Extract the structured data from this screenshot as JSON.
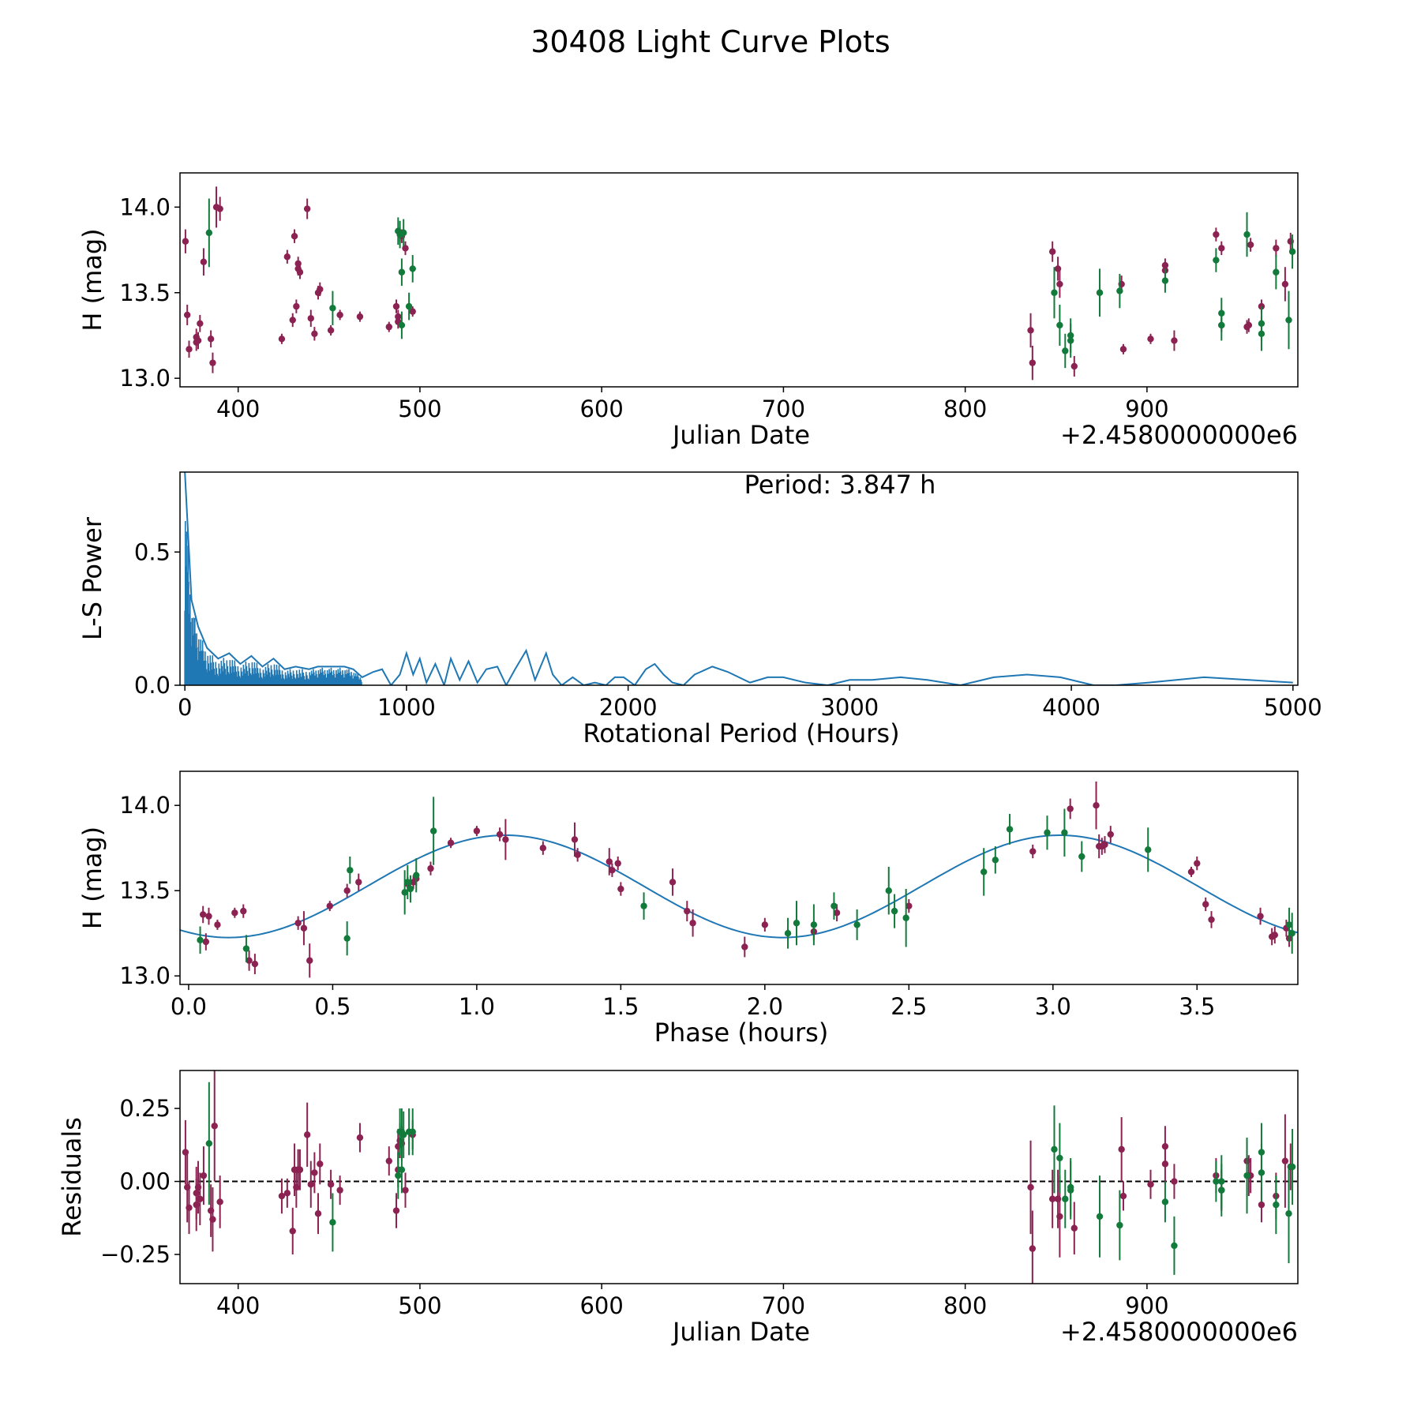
{
  "figure": {
    "title": "30408 Light Curve Plots"
  },
  "colors": {
    "red_band": "#8b2252",
    "green_band": "#127a3a",
    "model": "#1f77b4",
    "axes": "#000000"
  },
  "chart_data": [
    {
      "type": "scatter",
      "name": "light-curve",
      "title": "",
      "xlabel": "Julian Date",
      "ylabel": "H (mag)",
      "offset_text": "+2.4580000000e6",
      "xlim": [
        368,
        983
      ],
      "ylim": [
        12.95,
        14.2
      ],
      "xticks": [
        400,
        500,
        600,
        700,
        800,
        900
      ],
      "yticks": [
        13.0,
        13.5,
        14.0
      ],
      "ytick_labels": [
        "13.0",
        "13.5",
        "14.0"
      ],
      "series": [
        {
          "name": "red band",
          "color": "red_band",
          "x": [
            371,
            372,
            373,
            377,
            377,
            378,
            379,
            381,
            385,
            386,
            388,
            390,
            424,
            427,
            430,
            431,
            432,
            433,
            433,
            434,
            438,
            440,
            442,
            444,
            445,
            451,
            456,
            467,
            483,
            487,
            488,
            488,
            489,
            490,
            492,
            496,
            836,
            837,
            848,
            851,
            852,
            860,
            886,
            887,
            902,
            910,
            910,
            915,
            938,
            941,
            941,
            955,
            956,
            957,
            963,
            971,
            976,
            979
          ],
          "y": [
            13.8,
            13.37,
            13.17,
            13.24,
            13.21,
            13.22,
            13.32,
            13.68,
            13.23,
            13.09,
            14.0,
            13.99,
            13.23,
            13.71,
            13.34,
            13.83,
            13.42,
            13.67,
            13.64,
            13.62,
            13.99,
            13.35,
            13.26,
            13.5,
            13.52,
            13.28,
            13.37,
            13.36,
            13.3,
            13.42,
            13.36,
            13.33,
            13.84,
            13.83,
            13.76,
            13.39,
            13.28,
            13.09,
            13.74,
            13.64,
            13.55,
            13.07,
            13.55,
            13.17,
            13.23,
            13.66,
            13.63,
            13.22,
            13.84,
            13.76,
            13.31,
            13.3,
            13.31,
            13.78,
            13.42,
            13.76,
            13.55,
            13.8
          ],
          "yerr": [
            0.07,
            0.06,
            0.05,
            0.05,
            0.05,
            0.05,
            0.05,
            0.08,
            0.05,
            0.06,
            0.12,
            0.07,
            0.03,
            0.04,
            0.04,
            0.04,
            0.04,
            0.04,
            0.04,
            0.04,
            0.06,
            0.05,
            0.04,
            0.04,
            0.04,
            0.03,
            0.03,
            0.03,
            0.03,
            0.04,
            0.04,
            0.04,
            0.04,
            0.04,
            0.04,
            0.03,
            0.1,
            0.1,
            0.06,
            0.07,
            0.08,
            0.06,
            0.05,
            0.03,
            0.03,
            0.04,
            0.04,
            0.06,
            0.04,
            0.04,
            0.04,
            0.04,
            0.04,
            0.04,
            0.04,
            0.05,
            0.1,
            0.05
          ]
        },
        {
          "name": "green band",
          "color": "green_band",
          "x": [
            384,
            452,
            488,
            489,
            490,
            490,
            491,
            494,
            496,
            849,
            852,
            855,
            858,
            858,
            874,
            885,
            910,
            938,
            941,
            941,
            955,
            963,
            963,
            971,
            978,
            980
          ],
          "y": [
            13.85,
            13.41,
            13.86,
            13.84,
            13.31,
            13.62,
            13.85,
            13.42,
            13.64,
            13.5,
            13.31,
            13.16,
            13.25,
            13.22,
            13.5,
            13.51,
            13.57,
            13.69,
            13.31,
            13.38,
            13.84,
            13.26,
            13.32,
            13.62,
            13.34,
            13.74
          ],
          "yerr": [
            0.2,
            0.1,
            0.08,
            0.08,
            0.08,
            0.08,
            0.08,
            0.08,
            0.08,
            0.15,
            0.12,
            0.1,
            0.1,
            0.1,
            0.14,
            0.1,
            0.07,
            0.07,
            0.09,
            0.09,
            0.13,
            0.1,
            0.1,
            0.1,
            0.17,
            0.1
          ]
        }
      ]
    },
    {
      "type": "line",
      "name": "periodogram",
      "title": "",
      "xlabel": "Rotational Period (Hours)",
      "ylabel": "L-S Power",
      "annotation": "Period: 3.847 h",
      "xlim": [
        -22,
        5022
      ],
      "ylim": [
        0,
        0.8
      ],
      "xticks": [
        0,
        1000,
        2000,
        3000,
        4000,
        5000
      ],
      "yticks": [
        0.0,
        0.5
      ],
      "ytick_labels": [
        "0.0",
        "0.5"
      ],
      "x": [
        0,
        30,
        60,
        100,
        150,
        200,
        250,
        300,
        350,
        400,
        450,
        500,
        560,
        600,
        640,
        680,
        720,
        760,
        800,
        850,
        890,
        930,
        970,
        1000,
        1030,
        1060,
        1090,
        1130,
        1170,
        1200,
        1240,
        1280,
        1320,
        1360,
        1410,
        1450,
        1490,
        1540,
        1580,
        1630,
        1660,
        1700,
        1750,
        1800,
        1850,
        1900,
        1940,
        1980,
        2030,
        2080,
        2120,
        2160,
        2200,
        2250,
        2300,
        2380,
        2450,
        2550,
        2630,
        2700,
        2800,
        2900,
        3000,
        3100,
        3230,
        3350,
        3500,
        3650,
        3800,
        3950,
        4100,
        4200,
        4350,
        4600,
        4800,
        5000
      ],
      "values": [
        0.8,
        0.32,
        0.22,
        0.14,
        0.1,
        0.12,
        0.08,
        0.11,
        0.07,
        0.1,
        0.06,
        0.07,
        0.06,
        0.07,
        0.07,
        0.07,
        0.07,
        0.06,
        0.03,
        0.05,
        0.06,
        0.0,
        0.04,
        0.12,
        0.04,
        0.1,
        0.01,
        0.08,
        0.0,
        0.1,
        0.02,
        0.09,
        0.01,
        0.06,
        0.07,
        0.0,
        0.06,
        0.13,
        0.02,
        0.12,
        0.04,
        0.0,
        0.03,
        0.0,
        0.01,
        0.0,
        0.03,
        0.03,
        0.0,
        0.06,
        0.08,
        0.04,
        0.01,
        0.0,
        0.04,
        0.07,
        0.05,
        0.01,
        0.03,
        0.03,
        0.01,
        0.0,
        0.02,
        0.02,
        0.03,
        0.02,
        0.0,
        0.03,
        0.04,
        0.03,
        0.0,
        0.0,
        0.01,
        0.03,
        0.02,
        0.01
      ]
    },
    {
      "type": "scatter",
      "name": "phased-curve",
      "title": "",
      "xlabel": "Phase (hours)",
      "ylabel": "H (mag)",
      "xlim": [
        -0.03,
        3.85
      ],
      "ylim": [
        12.95,
        14.2
      ],
      "xticks": [
        0.0,
        0.5,
        1.0,
        1.5,
        2.0,
        2.5,
        3.0,
        3.5
      ],
      "xtick_labels": [
        "0.0",
        "0.5",
        "1.0",
        "1.5",
        "2.0",
        "2.5",
        "3.0",
        "3.5"
      ],
      "yticks": [
        13.0,
        13.5,
        14.0
      ],
      "ytick_labels": [
        "13.0",
        "13.5",
        "14.0"
      ],
      "model": {
        "mean": 13.525,
        "amplitude": 0.3,
        "period": 1.9235,
        "peak_phase": 1.1
      },
      "series": [
        {
          "name": "red band",
          "color": "red_band",
          "x": [
            0.05,
            0.06,
            0.07,
            0.1,
            0.16,
            0.19,
            0.21,
            0.23,
            0.38,
            0.4,
            0.42,
            0.49,
            0.55,
            0.59,
            0.76,
            0.78,
            0.79,
            0.84,
            0.91,
            1.0,
            1.08,
            1.1,
            1.23,
            1.34,
            1.35,
            1.46,
            1.47,
            1.49,
            1.5,
            1.68,
            1.73,
            1.75,
            1.93,
            2.0,
            2.17,
            2.25,
            2.5,
            2.93,
            3.06,
            3.15,
            3.16,
            3.17,
            3.18,
            3.2,
            3.48,
            3.5,
            3.53,
            3.55,
            3.72,
            3.76,
            3.77,
            3.81,
            3.82
          ],
          "y": [
            13.36,
            13.2,
            13.35,
            13.3,
            13.37,
            13.38,
            13.09,
            13.07,
            13.31,
            13.28,
            13.09,
            13.41,
            13.5,
            13.55,
            13.54,
            13.55,
            13.57,
            13.63,
            13.78,
            13.85,
            13.83,
            13.8,
            13.75,
            13.8,
            13.71,
            13.67,
            13.62,
            13.66,
            13.51,
            13.55,
            13.38,
            13.31,
            13.17,
            13.3,
            13.26,
            13.37,
            13.41,
            13.73,
            13.98,
            14.0,
            13.76,
            13.76,
            13.77,
            13.83,
            13.61,
            13.66,
            13.42,
            13.33,
            13.35,
            13.23,
            13.24,
            13.28,
            13.22
          ],
          "yerr": [
            0.05,
            0.05,
            0.05,
            0.03,
            0.03,
            0.04,
            0.06,
            0.06,
            0.04,
            0.1,
            0.1,
            0.03,
            0.04,
            0.05,
            0.04,
            0.04,
            0.04,
            0.04,
            0.03,
            0.03,
            0.04,
            0.12,
            0.04,
            0.1,
            0.04,
            0.08,
            0.04,
            0.04,
            0.04,
            0.08,
            0.06,
            0.08,
            0.06,
            0.04,
            0.05,
            0.05,
            0.04,
            0.04,
            0.06,
            0.14,
            0.07,
            0.05,
            0.05,
            0.05,
            0.03,
            0.04,
            0.04,
            0.05,
            0.05,
            0.05,
            0.05,
            0.05,
            0.05
          ]
        },
        {
          "name": "green band",
          "color": "green_band",
          "x": [
            0.04,
            0.2,
            0.55,
            0.56,
            0.75,
            0.76,
            0.77,
            0.79,
            0.85,
            1.58,
            2.08,
            2.11,
            2.17,
            2.24,
            2.32,
            2.43,
            2.45,
            2.49,
            2.76,
            2.8,
            2.85,
            2.98,
            3.04,
            3.1,
            3.33,
            3.82,
            3.83
          ],
          "y": [
            13.21,
            13.16,
            13.22,
            13.62,
            13.49,
            13.55,
            13.51,
            13.59,
            13.85,
            13.41,
            13.25,
            13.31,
            13.3,
            13.41,
            13.3,
            13.5,
            13.38,
            13.34,
            13.61,
            13.68,
            13.86,
            13.84,
            13.84,
            13.7,
            13.74,
            13.3,
            13.25
          ],
          "yerr": [
            0.08,
            0.08,
            0.1,
            0.08,
            0.13,
            0.1,
            0.08,
            0.1,
            0.2,
            0.08,
            0.09,
            0.13,
            0.12,
            0.08,
            0.09,
            0.14,
            0.1,
            0.17,
            0.14,
            0.08,
            0.09,
            0.1,
            0.14,
            0.09,
            0.13,
            0.1,
            0.12
          ]
        }
      ]
    },
    {
      "type": "scatter",
      "name": "residuals",
      "title": "",
      "xlabel": "Julian Date",
      "ylabel": "Residuals",
      "offset_text": "+2.4580000000e6",
      "xlim": [
        368,
        983
      ],
      "ylim": [
        -0.35,
        0.38
      ],
      "xticks": [
        400,
        500,
        600,
        700,
        800,
        900
      ],
      "yticks": [
        -0.25,
        0.0,
        0.25
      ],
      "ytick_labels": [
        "−0.25",
        "0.00",
        "0.25"
      ],
      "reference_line": 0,
      "series": [
        {
          "name": "red band",
          "color": "red_band",
          "x": [
            371,
            372,
            373,
            377,
            377,
            378,
            379,
            381,
            385,
            386,
            387,
            390,
            424,
            427,
            430,
            431,
            432,
            433,
            433,
            434,
            438,
            440,
            442,
            444,
            445,
            451,
            456,
            467,
            483,
            487,
            488,
            488,
            489,
            490,
            492,
            496,
            836,
            837,
            848,
            851,
            852,
            860,
            886,
            887,
            902,
            910,
            910,
            915,
            938,
            941,
            941,
            955,
            956,
            957,
            963,
            971,
            976,
            979
          ],
          "y": [
            0.1,
            -0.02,
            -0.09,
            -0.08,
            -0.04,
            -0.02,
            -0.06,
            0.02,
            -0.1,
            -0.13,
            0.19,
            -0.07,
            -0.05,
            -0.04,
            -0.17,
            0.04,
            -0.02,
            0.04,
            0.04,
            0.04,
            0.16,
            -0.01,
            0.03,
            -0.11,
            0.06,
            -0.01,
            -0.03,
            0.15,
            0.07,
            -0.1,
            0.12,
            0.04,
            0.14,
            0.13,
            -0.03,
            0.16,
            -0.02,
            -0.23,
            -0.06,
            -0.06,
            -0.12,
            -0.16,
            0.11,
            -0.05,
            -0.01,
            0.12,
            0.06,
            0.0,
            0.02,
            -0.03,
            -0.03,
            0.07,
            0.02,
            0.02,
            -0.08,
            -0.05,
            0.07,
            0.05
          ],
          "yerr": [
            0.11,
            0.12,
            0.09,
            0.09,
            0.09,
            0.09,
            0.09,
            0.1,
            0.09,
            0.11,
            0.19,
            0.09,
            0.06,
            0.05,
            0.08,
            0.09,
            0.07,
            0.07,
            0.07,
            0.07,
            0.11,
            0.08,
            0.07,
            0.07,
            0.07,
            0.05,
            0.05,
            0.05,
            0.05,
            0.06,
            0.06,
            0.06,
            0.06,
            0.06,
            0.06,
            0.05,
            0.16,
            0.13,
            0.1,
            0.1,
            0.14,
            0.09,
            0.11,
            0.05,
            0.05,
            0.07,
            0.07,
            0.06,
            0.06,
            0.07,
            0.07,
            0.07,
            0.07,
            0.06,
            0.06,
            0.08,
            0.16,
            0.08
          ]
        },
        {
          "name": "green band",
          "color": "green_band",
          "x": [
            384,
            452,
            488,
            489,
            490,
            490,
            491,
            494,
            496,
            849,
            852,
            855,
            858,
            858,
            874,
            885,
            910,
            915,
            938,
            941,
            941,
            955,
            963,
            963,
            971,
            978,
            980
          ],
          "y": [
            0.13,
            -0.14,
            0.02,
            0.17,
            0.04,
            0.17,
            0.16,
            0.17,
            0.17,
            0.11,
            0.08,
            -0.06,
            -0.02,
            -0.03,
            -0.12,
            -0.15,
            -0.07,
            -0.22,
            0.0,
            0.0,
            -0.03,
            0.02,
            0.03,
            0.1,
            -0.08,
            -0.11,
            0.05
          ],
          "yerr": [
            0.21,
            0.1,
            0.08,
            0.08,
            0.08,
            0.08,
            0.08,
            0.08,
            0.08,
            0.15,
            0.12,
            0.1,
            0.1,
            0.1,
            0.14,
            0.12,
            0.07,
            0.1,
            0.07,
            0.09,
            0.09,
            0.13,
            0.1,
            0.1,
            0.1,
            0.17,
            0.13
          ]
        }
      ]
    }
  ]
}
